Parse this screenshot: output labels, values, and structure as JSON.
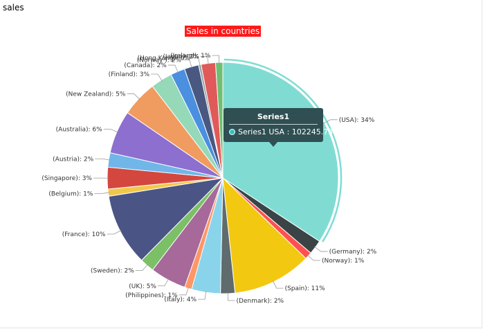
{
  "panel": {
    "title": "sales"
  },
  "chart_data": {
    "type": "pie",
    "title": "Sales in countries",
    "series_name": "Series1",
    "slices": [
      {
        "label": "USA",
        "value": 34,
        "color": "#80dcd3"
      },
      {
        "label": "Germany",
        "value": 2,
        "color": "#3a4446"
      },
      {
        "label": "Norway",
        "value": 1,
        "color": "#ff5050"
      },
      {
        "label": "Spain",
        "value": 11,
        "color": "#f2c811"
      },
      {
        "label": "Denmark",
        "value": 2,
        "color": "#5f6b6d"
      },
      {
        "label": "Italy",
        "value": 4,
        "color": "#8ad4eb"
      },
      {
        "label": "Philippines",
        "value": 1,
        "color": "#fe9666"
      },
      {
        "label": "UK",
        "value": 5,
        "color": "#a66999"
      },
      {
        "label": "Sweden",
        "value": 2,
        "color": "#7bc066"
      },
      {
        "label": "France",
        "value": 10,
        "color": "#4a5585"
      },
      {
        "label": "Belgium",
        "value": 1,
        "color": "#f2c84b"
      },
      {
        "label": "Singapore",
        "value": 3,
        "color": "#d4473f"
      },
      {
        "label": "Austria",
        "value": 2,
        "color": "#71b6e8"
      },
      {
        "label": "Australia",
        "value": 6,
        "color": "#8c6fcf"
      },
      {
        "label": "New Zealand",
        "value": 5,
        "color": "#f09b60"
      },
      {
        "label": "Finland",
        "value": 3,
        "color": "#95d9b8"
      },
      {
        "label": "Canada",
        "value": 2,
        "color": "#4a8fe0"
      },
      {
        "label": "Norway ",
        "value": 2,
        "color": "#485881"
      },
      {
        "label": "Hong Kong",
        "value": 0,
        "color": "#9aa3a5"
      },
      {
        "label": "Japan",
        "value": 2,
        "color": "#e05a5a"
      },
      {
        "label": "Ireland",
        "value": 1,
        "color": "#6fbf73"
      }
    ],
    "label_format": "({label}): {value}%",
    "selected_slice": "USA"
  },
  "tooltip": {
    "title": "Series1",
    "text": "Series1 USA : 102245.73",
    "dot_color": "#2ec4c4"
  }
}
